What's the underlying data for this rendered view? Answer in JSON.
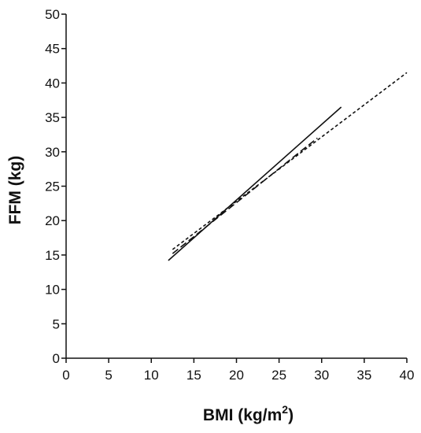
{
  "chart_data": {
    "type": "line",
    "xlabel": "BMI (kg/m",
    "xlabel_sup": "2",
    "xlabel_close": ")",
    "ylabel": "FFM (kg)",
    "xlim": [
      0,
      40
    ],
    "ylim": [
      0,
      50
    ],
    "xticks": [
      0,
      5,
      10,
      15,
      20,
      25,
      30,
      35,
      40
    ],
    "yticks": [
      0,
      5,
      10,
      15,
      20,
      25,
      30,
      35,
      40,
      45,
      50
    ],
    "grid": false,
    "legend": "none",
    "series": [
      {
        "style": "solid",
        "x": [
          12.0,
          32.3
        ],
        "y": [
          14.2,
          36.5
        ]
      },
      {
        "style": "long-dash",
        "x": [
          12.5,
          29.5
        ],
        "y": [
          15.2,
          32.0
        ]
      },
      {
        "style": "short-dash",
        "x": [
          12.5,
          40.0
        ],
        "y": [
          15.8,
          41.5
        ]
      }
    ]
  }
}
